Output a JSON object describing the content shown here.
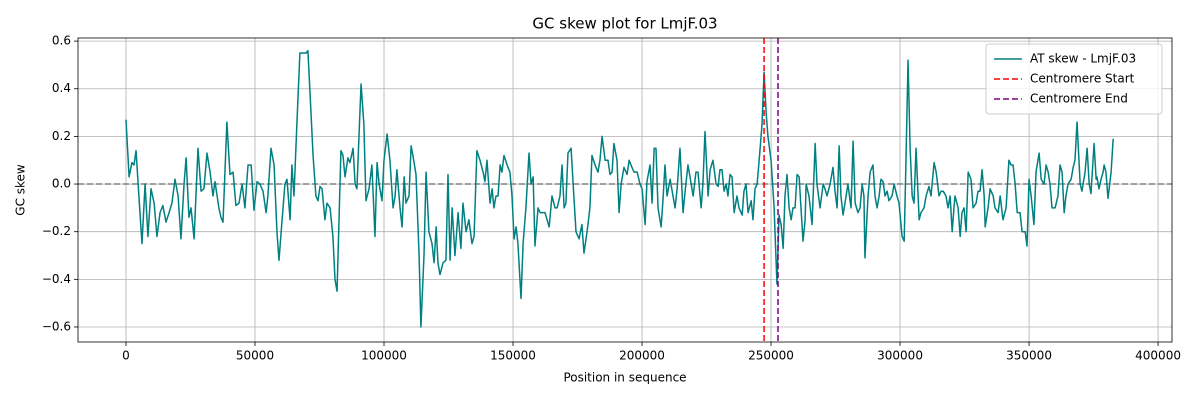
{
  "chart_data": {
    "type": "line",
    "title": "GC skew plot for LmjF.03",
    "xlabel": "Position in sequence",
    "ylabel": "GC skew",
    "xlim": [
      -18600,
      405400
    ],
    "ylim": [
      -0.663,
      0.613
    ],
    "xticks": [
      0,
      50000,
      100000,
      150000,
      200000,
      250000,
      300000,
      350000,
      400000
    ],
    "yticks": [
      {
        "value": -0.6,
        "label": "−0.6"
      },
      {
        "value": -0.4,
        "label": "−0.4"
      },
      {
        "value": -0.2,
        "label": "−0.2"
      },
      {
        "value": 0,
        "label": "0.0"
      },
      {
        "value": 0.2,
        "label": "0.2"
      },
      {
        "value": 0.4,
        "label": "0.4"
      },
      {
        "value": 0.6,
        "label": "0.6"
      }
    ],
    "grid": true,
    "legend": "upper right",
    "hline": {
      "value": 0,
      "color": "#808080"
    },
    "x": [
      0,
      1200,
      2300,
      3100,
      3900,
      5000,
      6200,
      7400,
      8500,
      9700,
      10900,
      12000,
      13200,
      14300,
      15500,
      16700,
      17800,
      19000,
      20200,
      21300,
      22500,
      23300,
      24400,
      25200,
      26400,
      27900,
      29100,
      30200,
      31400,
      32600,
      33700,
      34500,
      36000,
      36800,
      37600,
      39100,
      40300,
      41500,
      42600,
      43800,
      45000,
      46100,
      47300,
      48500,
      49600,
      50800,
      51900,
      53100,
      54300,
      55000,
      56200,
      57400,
      58500,
      59300,
      60500,
      61600,
      62400,
      63600,
      64300,
      65100,
      66300,
      67400,
      69000,
      69800,
      70500,
      71700,
      72500,
      73600,
      74400,
      75200,
      76000,
      77100,
      77900,
      79100,
      80200,
      81000,
      81800,
      83300,
      84100,
      84900,
      86000,
      86800,
      88000,
      88800,
      89500,
      90300,
      91100,
      92200,
      93000,
      94200,
      95300,
      96500,
      97300,
      98100,
      99200,
      100000,
      101200,
      102300,
      103500,
      104300,
      105000,
      106200,
      107000,
      107800,
      108500,
      109700,
      110500,
      111200,
      112400,
      113600,
      114300,
      115500,
      116300,
      117400,
      118600,
      119400,
      120200,
      120900,
      121700,
      122900,
      124000,
      124800,
      125600,
      126400,
      127500,
      128700,
      129800,
      130600,
      131800,
      132900,
      134100,
      134900,
      136000,
      137200,
      138400,
      139100,
      139900,
      141100,
      141900,
      142600,
      143400,
      144200,
      145000,
      145700,
      146500,
      147700,
      148800,
      149600,
      150400,
      151200,
      151900,
      153100,
      153900,
      155000,
      156200,
      157000,
      157800,
      158500,
      159700,
      160500,
      161600,
      162400,
      163200,
      164000,
      165100,
      166300,
      167100,
      168200,
      169000,
      169800,
      170500,
      171300,
      172500,
      173300,
      174400,
      175600,
      176700,
      177500,
      178700,
      179800,
      180600,
      181800,
      182900,
      183700,
      184500,
      185700,
      186800,
      187600,
      188400,
      189100,
      190300,
      191100,
      191900,
      193000,
      194200,
      195000,
      196100,
      196900,
      198100,
      199200,
      200000,
      201200,
      201900,
      203100,
      203900,
      204700,
      205400,
      206200,
      207400,
      208100,
      208900,
      209700,
      210900,
      212000,
      212800,
      213600,
      214700,
      215900,
      216700,
      217800,
      218600,
      219800,
      220900,
      221700,
      222900,
      223600,
      224400,
      225600,
      226400,
      227500,
      228700,
      229500,
      230200,
      231000,
      231800,
      232600,
      233300,
      234100,
      234900,
      235700,
      236800,
      237600,
      238800,
      239500,
      240300,
      241100,
      242300,
      243000,
      243800,
      244600,
      245400,
      246500,
      247300,
      248100,
      248800,
      250000,
      251200,
      251600,
      252300,
      253100,
      253900,
      254700,
      255400,
      256200,
      257000,
      257800,
      258500,
      259300,
      260100,
      260900,
      261600,
      262400,
      263200,
      263600,
      264700,
      265900,
      267100,
      267800,
      269000,
      270200,
      270900,
      271700,
      272900,
      274000,
      274800,
      275600,
      276400,
      277100,
      277900,
      279100,
      279800,
      281000,
      281800,
      282600,
      283700,
      284500,
      285300,
      286000,
      286400,
      287600,
      288400,
      289500,
      290300,
      291100,
      291900,
      292600,
      293400,
      294200,
      295000,
      295700,
      296900,
      297700,
      298800,
      299600,
      300800,
      301600,
      302300,
      303100,
      303900,
      304700,
      305400,
      306200,
      307400,
      308100,
      309300,
      310100,
      311200,
      312000,
      313200,
      314000,
      315100,
      315900,
      316700,
      317800,
      318600,
      319400,
      320200,
      320900,
      321300,
      322500,
      323300,
      324000,
      324800,
      325600,
      326400,
      327500,
      328300,
      329500,
      330200,
      331000,
      331800,
      332600,
      333000,
      334100,
      334900,
      336100,
      336800,
      338000,
      338800,
      339900,
      341100,
      342200,
      343000,
      343800,
      344600,
      345400,
      346500,
      347300,
      348500,
      349200,
      350000,
      350800,
      351900,
      352700,
      353900,
      354700,
      355800,
      356600,
      357400,
      358100,
      358900,
      360100,
      361200,
      362000,
      362800,
      363600,
      364300,
      365100,
      366300,
      367100,
      367800,
      368600,
      369800,
      370500,
      371700,
      372500,
      373300,
      374000,
      374800,
      375200,
      376000,
      376300,
      377100,
      377900,
      378700,
      379100,
      379800,
      380600,
      381800,
      382600
    ],
    "series": [
      {
        "name": "AT skew - LmjF.03",
        "color": "#008080",
        "values": [
          0.27,
          0.03,
          0.09,
          0.08,
          0.14,
          -0.05,
          -0.25,
          0.0,
          -0.22,
          -0.02,
          -0.08,
          -0.22,
          -0.12,
          -0.09,
          -0.16,
          -0.12,
          -0.08,
          0.02,
          -0.05,
          -0.23,
          0.0,
          0.11,
          -0.14,
          -0.1,
          -0.23,
          0.15,
          -0.03,
          -0.02,
          0.13,
          0.05,
          -0.05,
          0.01,
          -0.1,
          -0.14,
          -0.16,
          0.26,
          0.04,
          0.05,
          -0.09,
          -0.08,
          0.0,
          -0.1,
          0.08,
          0.08,
          -0.11,
          0.01,
          0.0,
          -0.03,
          -0.12,
          -0.05,
          0.15,
          0.08,
          -0.2,
          -0.32,
          -0.15,
          0.0,
          0.02,
          -0.15,
          0.08,
          -0.05,
          0.27,
          0.55,
          0.55,
          0.55,
          0.56,
          0.3,
          0.12,
          -0.05,
          -0.07,
          -0.01,
          -0.02,
          -0.15,
          -0.08,
          -0.1,
          -0.22,
          -0.4,
          -0.45,
          0.14,
          0.12,
          0.03,
          0.11,
          0.09,
          0.15,
          0.0,
          -0.02,
          0.2,
          0.42,
          0.25,
          -0.07,
          -0.02,
          0.08,
          -0.22,
          0.09,
          0.0,
          -0.07,
          0.1,
          0.21,
          0.1,
          -0.1,
          -0.05,
          0.06,
          -0.1,
          -0.18,
          0.03,
          -0.08,
          -0.05,
          0.16,
          0.12,
          0.04,
          -0.3,
          -0.6,
          -0.3,
          0.05,
          -0.2,
          -0.25,
          -0.33,
          -0.18,
          -0.33,
          -0.38,
          -0.33,
          -0.32,
          0.04,
          -0.32,
          -0.1,
          -0.3,
          -0.12,
          -0.27,
          -0.08,
          -0.2,
          -0.15,
          -0.25,
          -0.22,
          0.14,
          0.1,
          0.05,
          0.01,
          0.1,
          -0.08,
          -0.02,
          -0.1,
          -0.05,
          -0.05,
          0.08,
          0.05,
          0.12,
          0.08,
          0.05,
          -0.05,
          -0.23,
          -0.18,
          -0.25,
          -0.48,
          -0.25,
          -0.1,
          0.13,
          0.0,
          0.03,
          -0.26,
          -0.1,
          -0.12,
          -0.12,
          -0.12,
          -0.15,
          -0.18,
          -0.05,
          -0.1,
          -0.1,
          -0.05,
          0.08,
          -0.1,
          -0.08,
          0.13,
          0.15,
          0.0,
          -0.2,
          -0.23,
          -0.17,
          -0.29,
          -0.2,
          -0.1,
          0.12,
          0.08,
          0.05,
          0.1,
          0.2,
          0.1,
          0.1,
          0.04,
          0.05,
          0.17,
          0.1,
          -0.12,
          0.0,
          0.07,
          0.04,
          0.1,
          0.07,
          0.05,
          0.05,
          0.0,
          -0.02,
          -0.17,
          0.01,
          0.08,
          -0.08,
          0.15,
          0.15,
          -0.1,
          -0.18,
          -0.07,
          0.08,
          -0.05,
          0.02,
          -0.05,
          -0.1,
          -0.02,
          0.15,
          -0.12,
          -0.03,
          0.08,
          0.03,
          -0.05,
          0.05,
          0.05,
          -0.1,
          0.0,
          0.22,
          -0.05,
          0.06,
          0.1,
          0.0,
          -0.01,
          0.06,
          0.06,
          -0.03,
          0.0,
          -0.05,
          0.04,
          0.03,
          -0.12,
          -0.05,
          -0.1,
          -0.13,
          -0.03,
          0.0,
          -0.12,
          -0.07,
          -0.15,
          -0.02,
          0.0,
          0.1,
          0.25,
          0.47,
          0.3,
          0.2,
          0.1,
          -0.1,
          -0.22,
          -0.42,
          -0.13,
          -0.17,
          -0.27,
          -0.05,
          0.04,
          -0.1,
          -0.15,
          -0.1,
          -0.1,
          0.04,
          0.03,
          -0.1,
          -0.24,
          -0.15,
          0.0,
          -0.05,
          -0.17,
          0.17,
          0.0,
          -0.1,
          0.0,
          -0.02,
          -0.05,
          0.0,
          0.07,
          -0.03,
          -0.1,
          0.16,
          -0.05,
          -0.13,
          -0.05,
          0.0,
          -0.1,
          0.18,
          -0.08,
          -0.12,
          -0.1,
          0.0,
          -0.05,
          -0.31,
          -0.05,
          0.05,
          0.08,
          -0.05,
          -0.1,
          -0.05,
          0.02,
          0.01,
          -0.05,
          -0.03,
          -0.07,
          -0.05,
          0.0,
          -0.05,
          -0.08,
          -0.22,
          -0.24,
          0.1,
          0.52,
          0.15,
          -0.05,
          -0.08,
          0.15,
          -0.15,
          -0.12,
          -0.1,
          -0.05,
          -0.01,
          -0.05,
          0.09,
          0.05,
          -0.05,
          -0.03,
          -0.03,
          -0.05,
          -0.1,
          -0.05,
          -0.2,
          -0.1,
          -0.05,
          -0.1,
          -0.22,
          -0.12,
          -0.1,
          -0.2,
          0.05,
          0.02,
          -0.1,
          -0.08,
          -0.03,
          -0.03,
          0.06,
          -0.05,
          -0.18,
          -0.1,
          -0.02,
          -0.05,
          -0.1,
          -0.12,
          -0.05,
          -0.15,
          -0.1,
          0.1,
          0.08,
          0.08,
          0.0,
          -0.12,
          -0.12,
          -0.2,
          -0.2,
          -0.26,
          0.02,
          -0.05,
          -0.17,
          0.05,
          0.13,
          0.02,
          0.0,
          0.08,
          0.05,
          0.0,
          -0.1,
          -0.1,
          -0.05,
          0.08,
          0.05,
          -0.12,
          -0.05,
          0.0,
          0.02,
          0.07,
          0.1,
          0.26,
          0.0,
          -0.03,
          0.05,
          0.15,
          0.0,
          -0.04,
          0.1,
          0.17,
          0.02,
          0.03,
          -0.02,
          0.02,
          0.05,
          0.08,
          0.05,
          -0.06,
          0.05,
          0.19
        ]
      }
    ],
    "vlines": [
      {
        "name": "Centromere Start",
        "color": "#ff0000",
        "value": 247300
      },
      {
        "name": "Centromere End",
        "color": "#800080",
        "value": 252700
      }
    ]
  }
}
